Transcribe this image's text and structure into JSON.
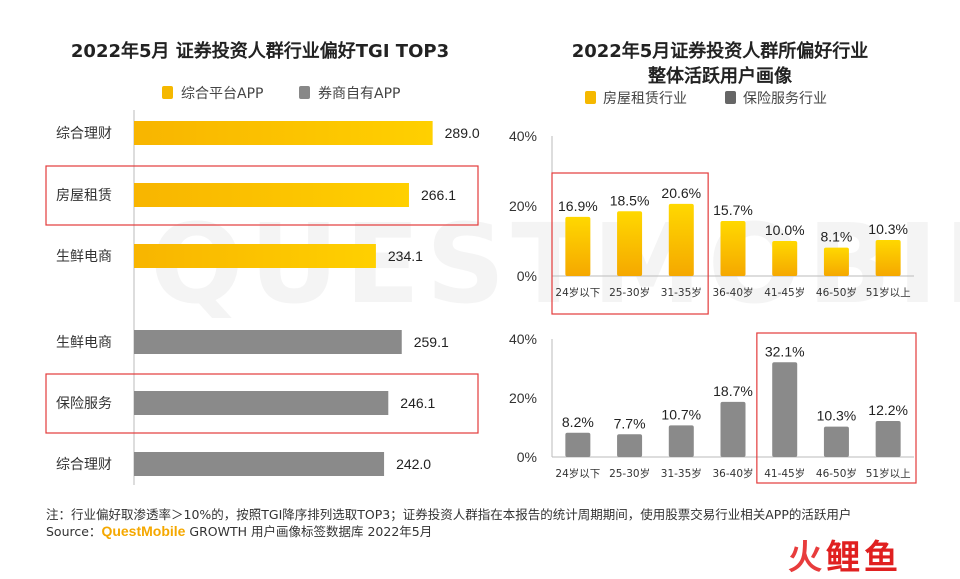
{
  "watermark": "QUESTMOBILE",
  "colors": {
    "primary": "#f5b800",
    "primary_light": "#ffd23a",
    "secondary": "#888888",
    "highlight": "#e33b3b",
    "axis": "#bbbbbb"
  },
  "chart_data": [
    {
      "type": "bar",
      "orientation": "horizontal",
      "title": "2022年5月 证券投资人群行业偏好TGI TOP3",
      "legend": [
        "综合平台APP",
        "券商自有APP"
      ],
      "legend_placement": "top",
      "series": [
        {
          "name": "综合平台APP",
          "categories": [
            "综合理财",
            "房屋租赁",
            "生鲜电商"
          ],
          "values": [
            289.0,
            266.1,
            234.1
          ],
          "labels": [
            "289.0",
            "266.1",
            "234.1"
          ]
        },
        {
          "name": "券商自有APP",
          "categories": [
            "生鲜电商",
            "保险服务",
            "综合理财"
          ],
          "values": [
            259.1,
            246.1,
            242.0
          ],
          "labels": [
            "259.1",
            "246.1",
            "242.0"
          ]
        }
      ],
      "highlighted": [
        "房屋租赁",
        "保险服务"
      ]
    },
    {
      "type": "bar",
      "title": [
        "2022年5月证券投资人群所偏好行业",
        "整体活跃用户画像"
      ],
      "legend": [
        "房屋租赁行业",
        "保险服务行业"
      ],
      "legend_placement": "top",
      "categories": [
        "24岁以下",
        "25-30岁",
        "31-35岁",
        "36-40岁",
        "41-45岁",
        "46-50岁",
        "51岁以上"
      ],
      "ylim": [
        0,
        40
      ],
      "yticks": [
        "0%",
        "20%",
        "40%"
      ],
      "series": [
        {
          "name": "房屋租赁行业",
          "values": [
            16.9,
            18.5,
            20.6,
            15.7,
            10.0,
            8.1,
            10.3
          ],
          "labels": [
            "16.9%",
            "18.5%",
            "20.6%",
            "15.7%",
            "10.0%",
            "8.1%",
            "10.3%"
          ]
        },
        {
          "name": "保险服务行业",
          "values": [
            8.2,
            7.7,
            10.7,
            18.7,
            32.1,
            10.3,
            12.2
          ],
          "labels": [
            "8.2%",
            "7.7%",
            "10.7%",
            "18.7%",
            "32.1%",
            "10.3%",
            "12.2%"
          ]
        }
      ],
      "highlighted": {
        "房屋租赁行业": [
          "24岁以下",
          "25-30岁",
          "31-35岁"
        ],
        "保险服务行业": [
          "41-45岁",
          "46-50岁",
          "51岁以上"
        ]
      }
    }
  ],
  "footer": {
    "note": "注：行业偏好取渗透率＞10%的，按照TGI降序排列选取TOP3；证券投资人群指在本报告的统计周期期间，使用股票交易行业相关APP的活跃用户",
    "source_prefix": "Source：",
    "source_brand": "QuestMobile",
    "source_rest": " GROWTH 用户画像标签数据库 2022年5月"
  },
  "logo": {
    "a": "火",
    "b": "鲤鱼"
  }
}
